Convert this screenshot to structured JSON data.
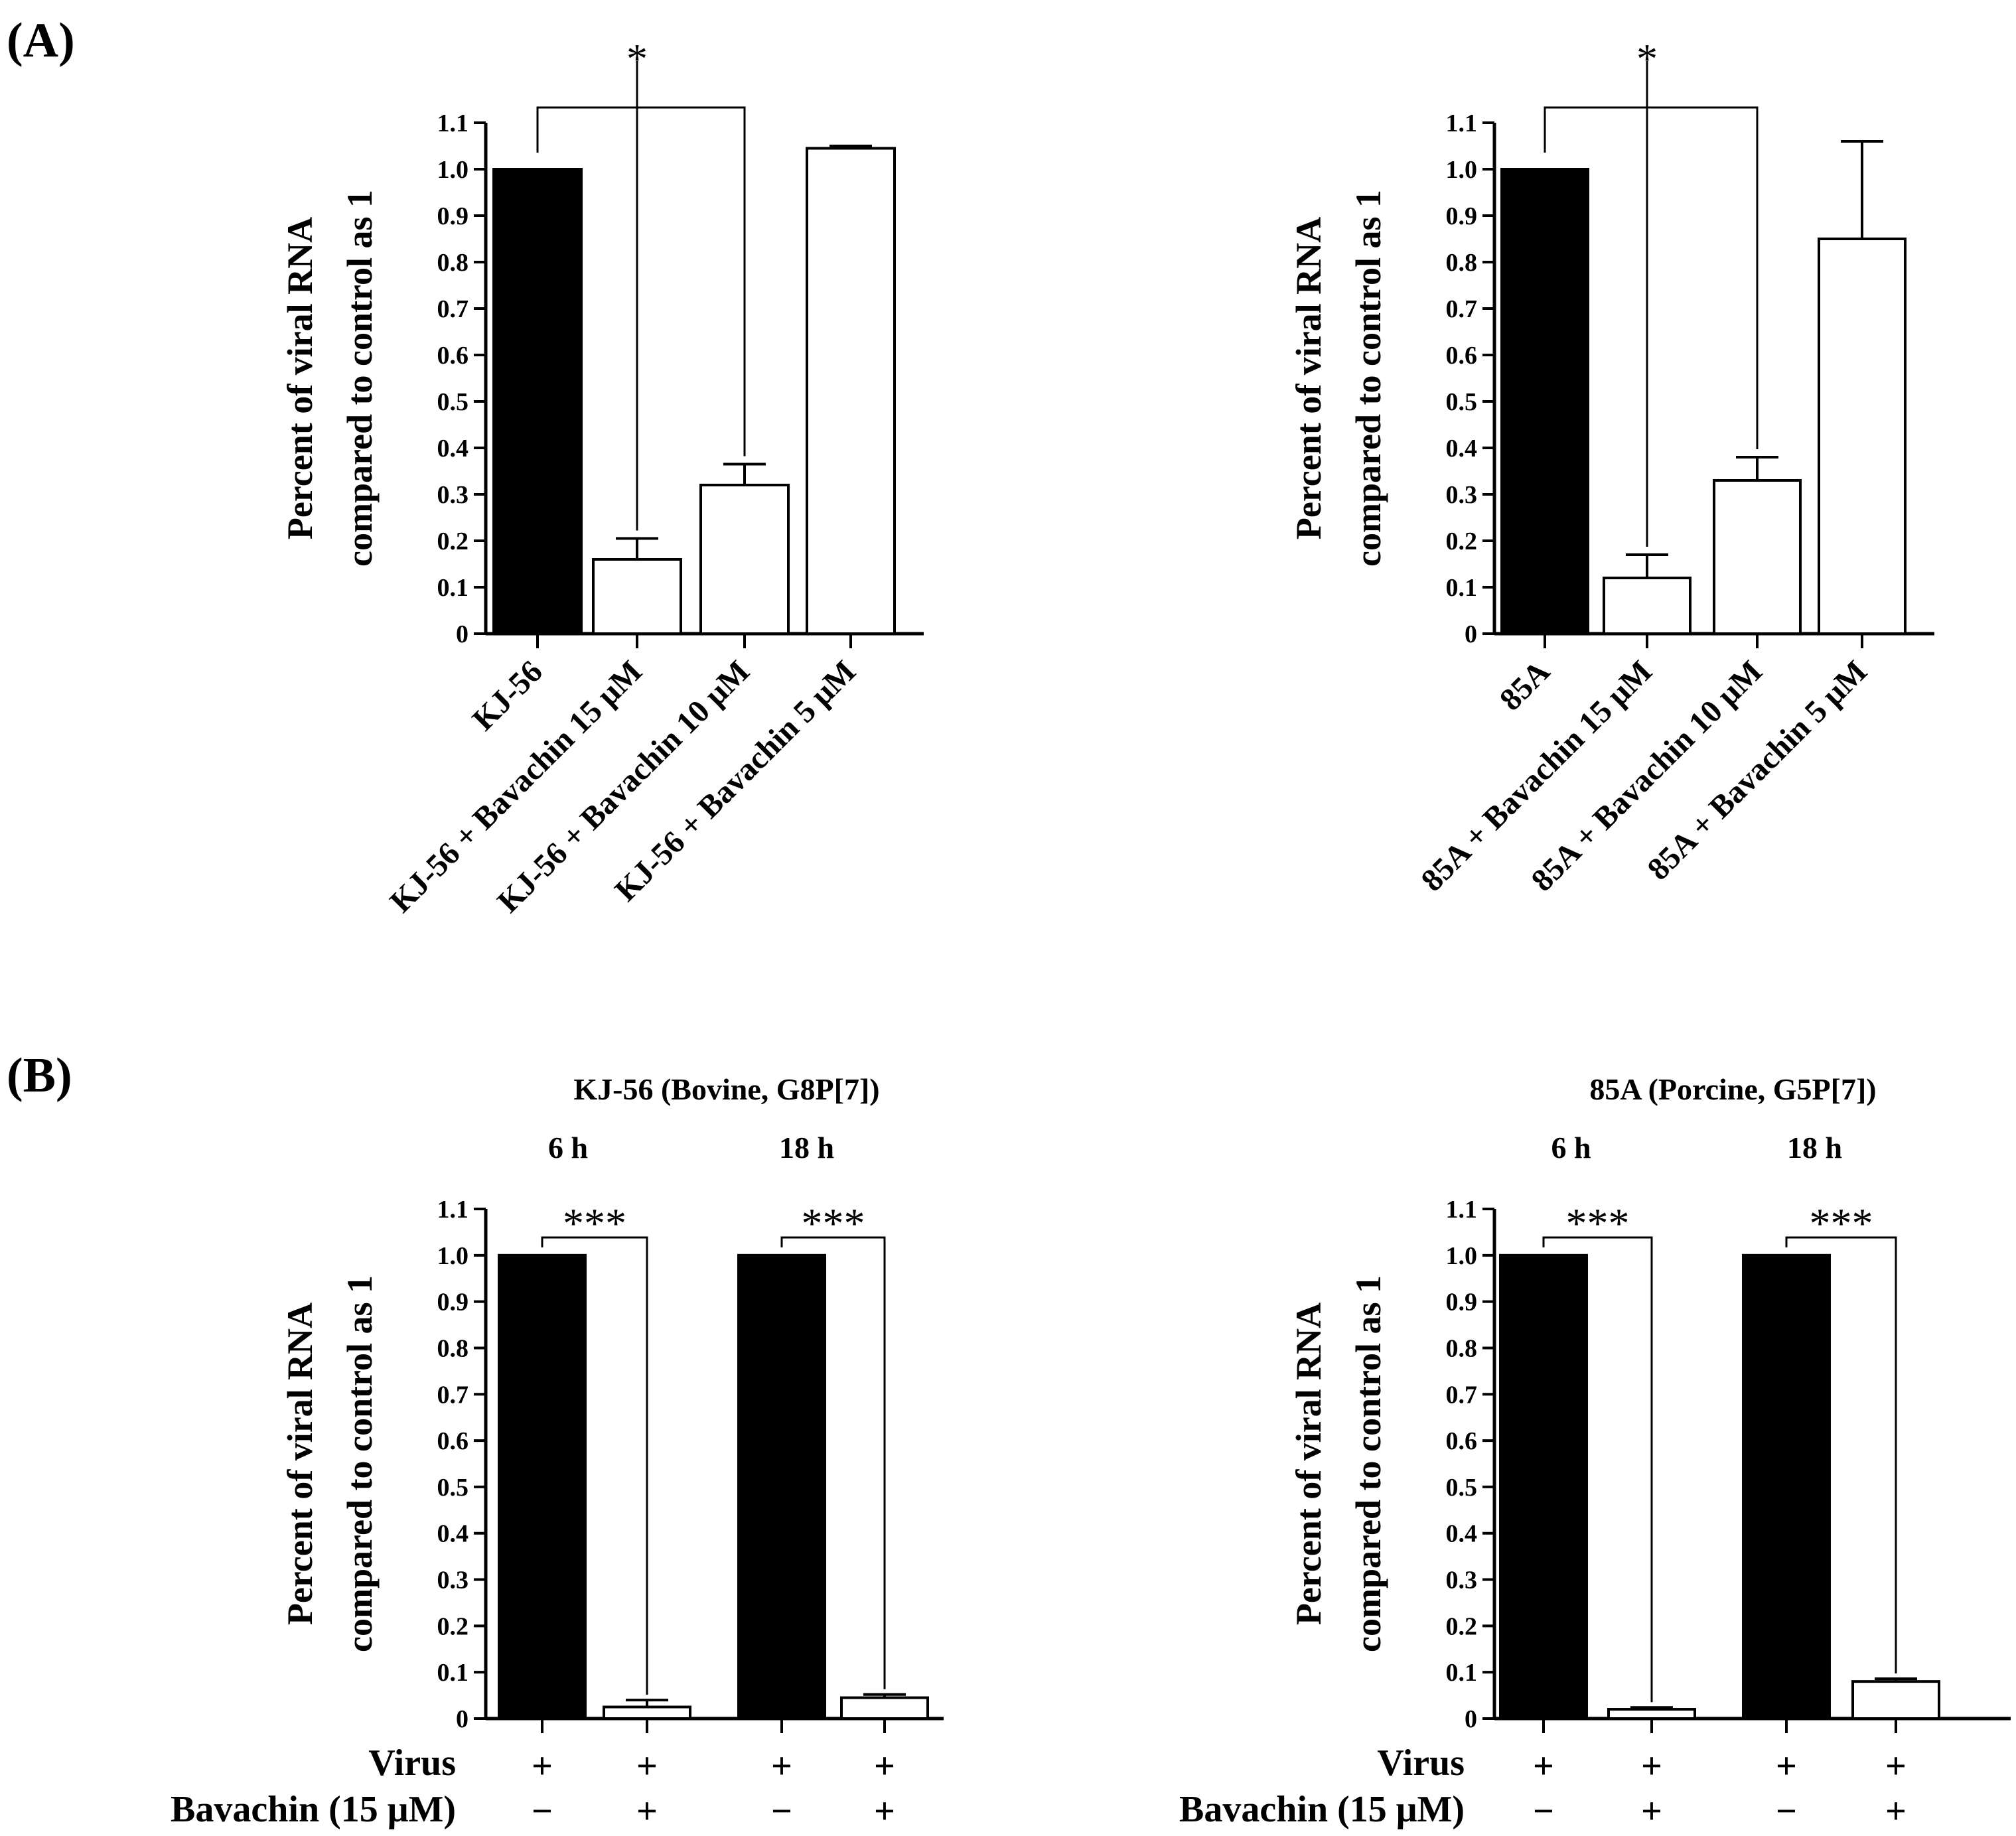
{
  "panel_labels": [
    "(A)",
    "(B)"
  ],
  "colors": {
    "virus_bar": "#000000",
    "treated_bar": "#ffffff",
    "stroke": "#000000"
  },
  "chart_data": [
    {
      "id": "A-left",
      "type": "bar",
      "title": "",
      "ylabel": [
        "Percent of viral RNA",
        "compared to control as 1"
      ],
      "ylim": [
        0,
        1.1
      ],
      "yticks": [
        "0",
        "0.1",
        "0.2",
        "0.3",
        "0.4",
        "0.5",
        "0.6",
        "0.7",
        "0.8",
        "0.9",
        "1.0",
        "1.1"
      ],
      "categories": [
        "KJ-56",
        "KJ-56 + Bavachin 15 μM",
        "KJ-56 + Bavachin 10 μM",
        "KJ-56 + Bavachin 5 μM"
      ],
      "values": [
        1.0,
        0.16,
        0.32,
        1.045
      ],
      "errors": [
        0,
        0.045,
        0.045,
        0.005
      ],
      "fills": [
        "black",
        "white",
        "white",
        "white"
      ],
      "significance": [
        {
          "from": 0,
          "to": 2,
          "label": "*"
        }
      ]
    },
    {
      "id": "A-right",
      "type": "bar",
      "title": "",
      "ylabel": [
        "Percent of viral RNA",
        "compared to control as 1"
      ],
      "ylim": [
        0,
        1.1
      ],
      "yticks": [
        "0",
        "0.1",
        "0.2",
        "0.3",
        "0.4",
        "0.5",
        "0.6",
        "0.7",
        "0.8",
        "0.9",
        "1.0",
        "1.1"
      ],
      "categories": [
        "85A",
        "85A + Bavachin 15 μM",
        "85A + Bavachin 10 μM",
        "85A + Bavachin 5 μM"
      ],
      "values": [
        1.0,
        0.12,
        0.33,
        0.85
      ],
      "errors": [
        0,
        0.05,
        0.05,
        0.21
      ],
      "fills": [
        "black",
        "white",
        "white",
        "white"
      ],
      "significance": [
        {
          "from": 0,
          "to": 2,
          "label": "*"
        }
      ]
    },
    {
      "id": "B-left",
      "type": "bar",
      "title": "KJ-56 (Bovine, G8P[7])",
      "group_labels": [
        "6 h",
        "18 h"
      ],
      "ylabel": [
        "Percent of viral RNA",
        "compared to control as 1"
      ],
      "ylim": [
        0,
        1.1
      ],
      "yticks": [
        "0",
        "0.1",
        "0.2",
        "0.3",
        "0.4",
        "0.5",
        "0.6",
        "0.7",
        "0.8",
        "0.9",
        "1.0",
        "1.1"
      ],
      "values": [
        1.0,
        0.025,
        1.0,
        0.045
      ],
      "errors": [
        0,
        0.015,
        0,
        0.007
      ],
      "fills": [
        "black",
        "white",
        "black",
        "white"
      ],
      "significance": [
        {
          "from": 0,
          "to": 1,
          "label": "***"
        },
        {
          "from": 2,
          "to": 3,
          "label": "***"
        }
      ],
      "row_labels": [
        "Virus",
        "Bavachin (15 μM)"
      ],
      "virus_row": [
        "+",
        "+",
        "+",
        "+"
      ],
      "bavachin_row": [
        "−",
        "+",
        "−",
        "+"
      ]
    },
    {
      "id": "B-right",
      "type": "bar",
      "title": "85A (Porcine, G5P[7])",
      "group_labels": [
        "6 h",
        "18 h"
      ],
      "ylabel": [
        "Percent of viral RNA",
        "compared to control as 1"
      ],
      "ylim": [
        0,
        1.1
      ],
      "yticks": [
        "0",
        "0.1",
        "0.2",
        "0.3",
        "0.4",
        "0.5",
        "0.6",
        "0.7",
        "0.8",
        "0.9",
        "1.0",
        "1.1"
      ],
      "values": [
        1.0,
        0.02,
        1.0,
        0.08
      ],
      "errors": [
        0,
        0.004,
        0,
        0.006
      ],
      "fills": [
        "black",
        "white",
        "black",
        "white"
      ],
      "significance": [
        {
          "from": 0,
          "to": 1,
          "label": "***"
        },
        {
          "from": 2,
          "to": 3,
          "label": "***"
        }
      ],
      "row_labels": [
        "Virus",
        "Bavachin (15 μM)"
      ],
      "virus_row": [
        "+",
        "+",
        "+",
        "+"
      ],
      "bavachin_row": [
        "−",
        "+",
        "−",
        "+"
      ]
    }
  ]
}
